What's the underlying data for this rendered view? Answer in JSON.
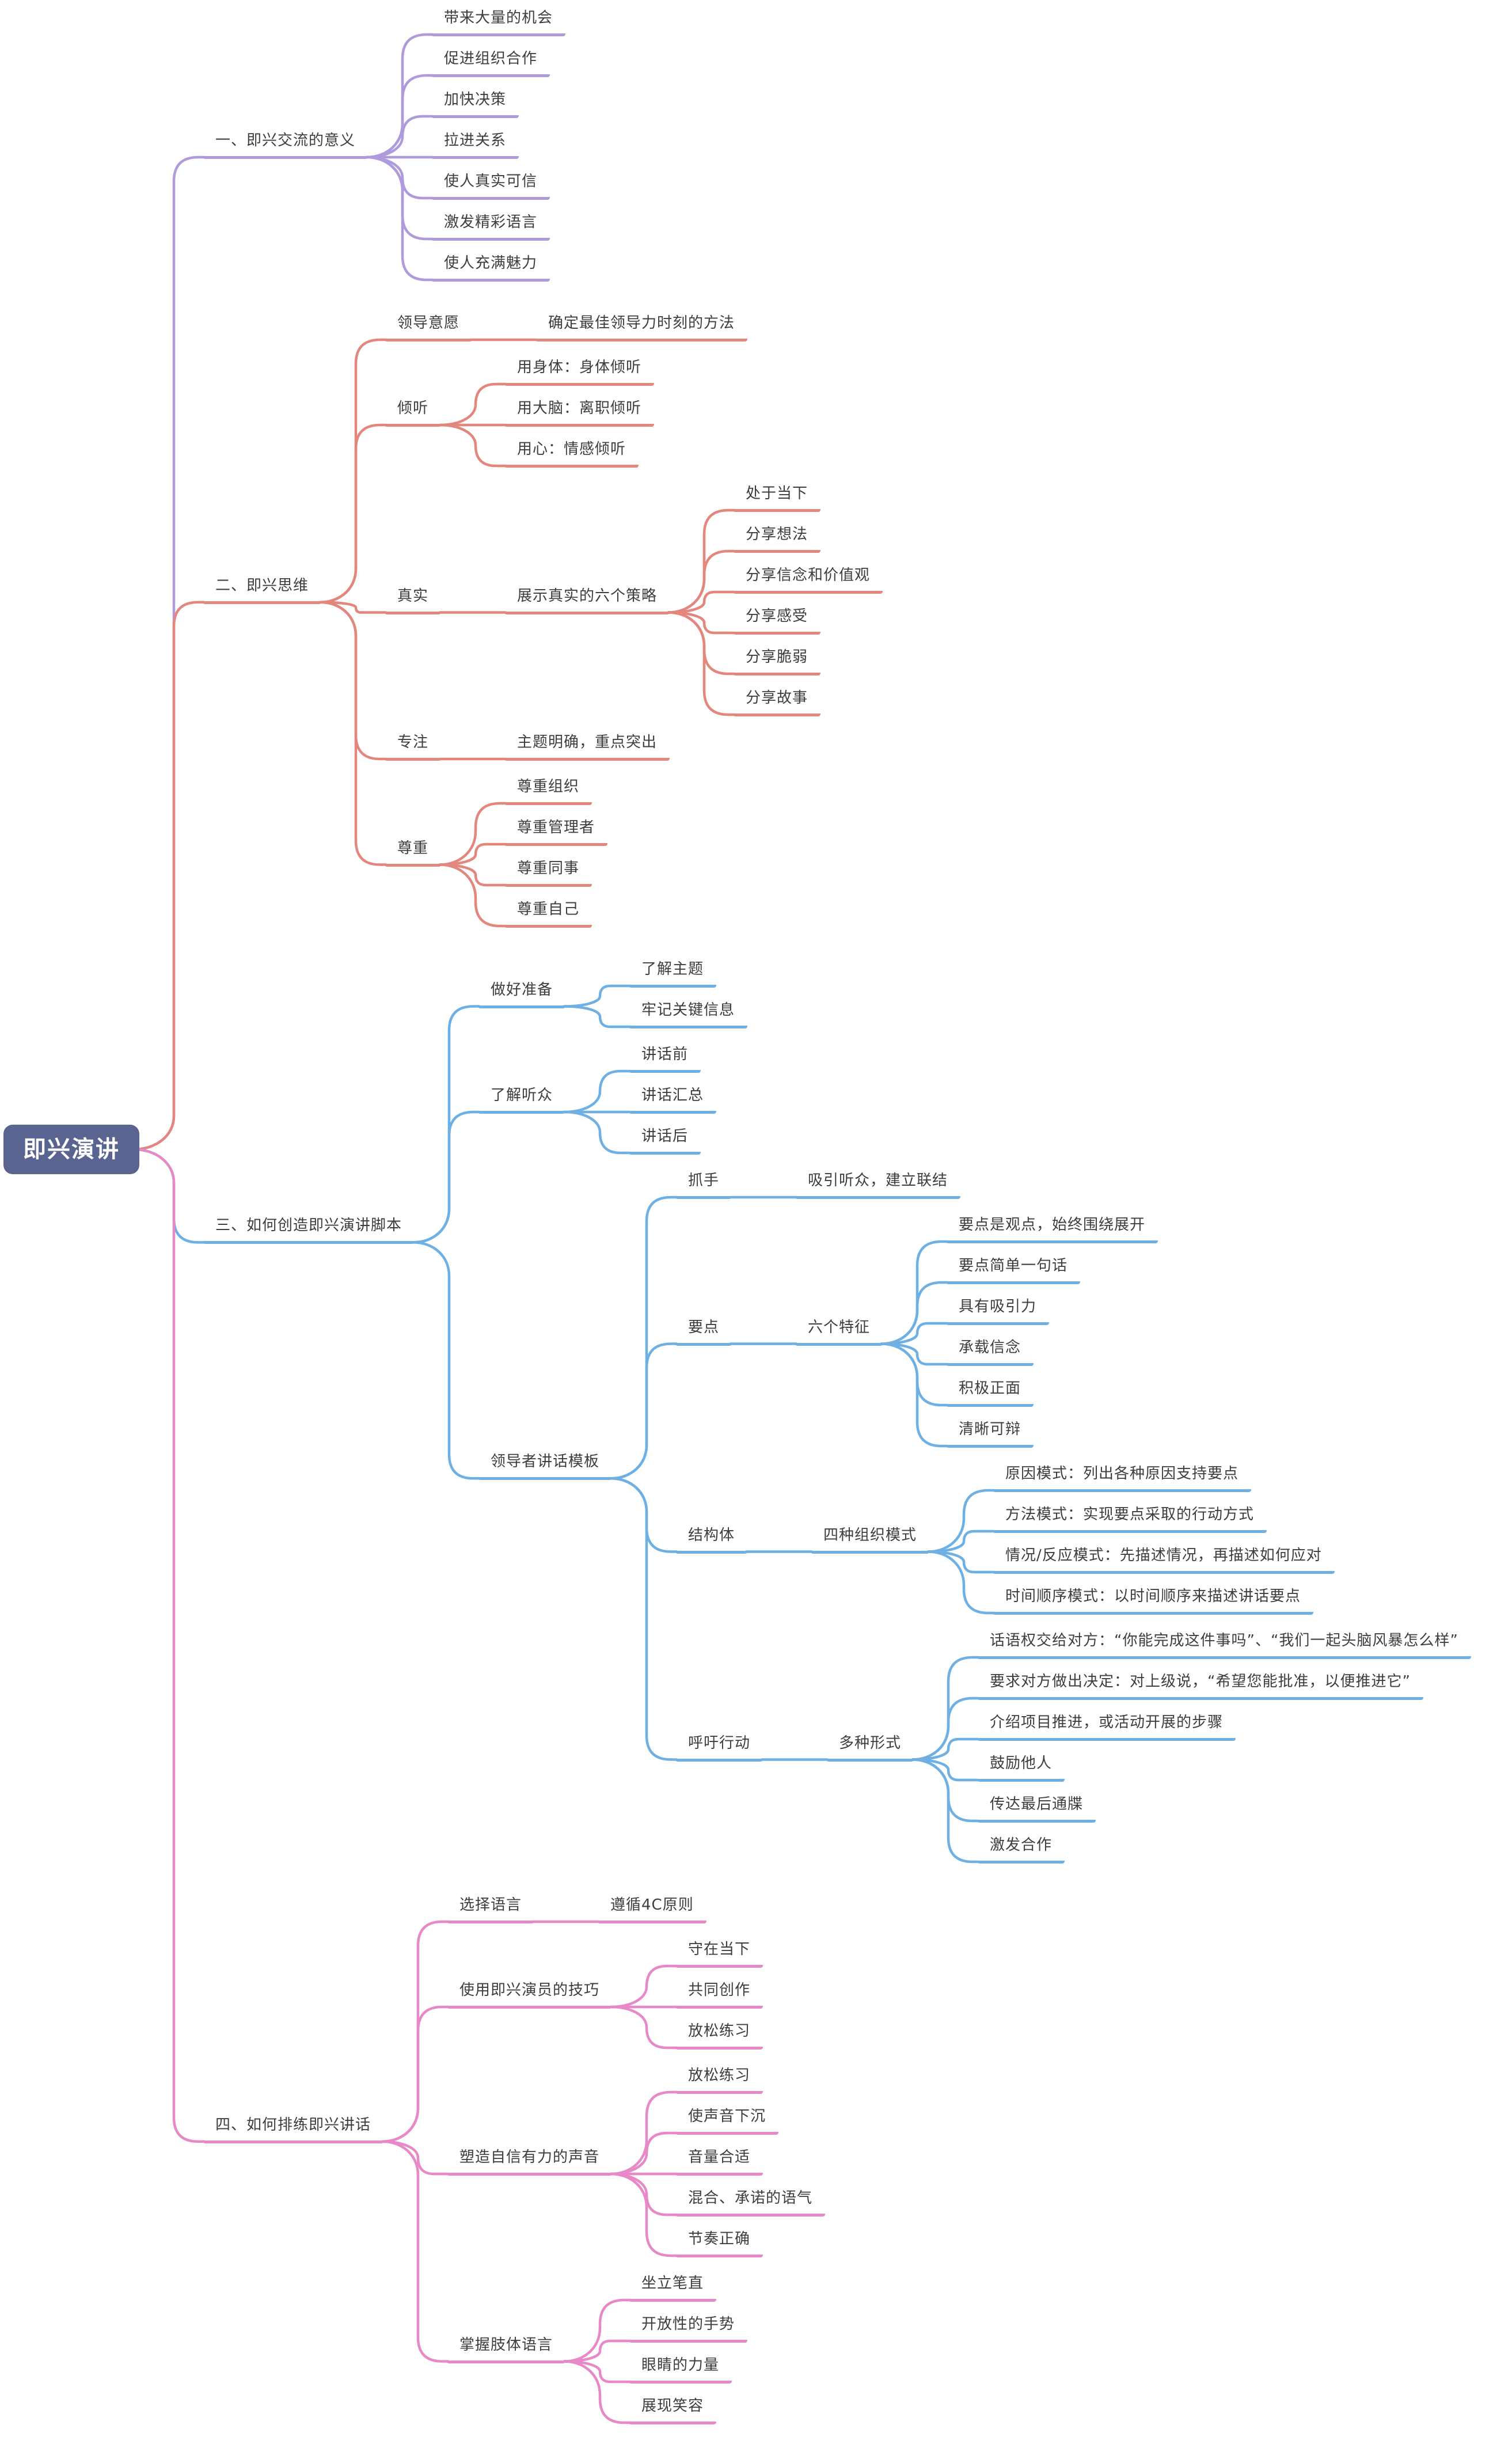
{
  "root": {
    "label": "即兴演讲",
    "color": "#5A6490"
  },
  "text_color": "#3D3D3D",
  "background_color": "#FFFFFF",
  "branches": [
    {
      "label": "一、即兴交流的意义",
      "color": "#AF9ADB",
      "children": [
        {
          "label": "带来大量的机会"
        },
        {
          "label": "促进组织合作"
        },
        {
          "label": "加快决策"
        },
        {
          "label": "拉进关系"
        },
        {
          "label": "使人真实可信"
        },
        {
          "label": "激发精彩语言"
        },
        {
          "label": "使人充满魅力"
        }
      ]
    },
    {
      "label": "二、即兴思维",
      "color": "#E2867E",
      "children": [
        {
          "label": "领导意愿",
          "children": [
            {
              "label": "确定最佳领导力时刻的方法"
            }
          ]
        },
        {
          "label": "倾听",
          "children": [
            {
              "label": "用身体：身体倾听"
            },
            {
              "label": "用大脑：离职倾听"
            },
            {
              "label": "用心：情感倾听"
            }
          ]
        },
        {
          "label": "真实",
          "children": [
            {
              "label": "展示真实的六个策略",
              "children": [
                {
                  "label": "处于当下"
                },
                {
                  "label": "分享想法"
                },
                {
                  "label": "分享信念和价值观"
                },
                {
                  "label": "分享感受"
                },
                {
                  "label": "分享脆弱"
                },
                {
                  "label": "分享故事"
                }
              ]
            }
          ]
        },
        {
          "label": "专注",
          "children": [
            {
              "label": "主题明确，重点突出"
            }
          ]
        },
        {
          "label": "尊重",
          "children": [
            {
              "label": "尊重组织"
            },
            {
              "label": "尊重管理者"
            },
            {
              "label": "尊重同事"
            },
            {
              "label": "尊重自己"
            }
          ]
        }
      ]
    },
    {
      "label": "三、如何创造即兴演讲脚本",
      "color": "#6FB0E4",
      "children": [
        {
          "label": "做好准备",
          "children": [
            {
              "label": "了解主题"
            },
            {
              "label": "牢记关键信息"
            }
          ]
        },
        {
          "label": "了解听众",
          "children": [
            {
              "label": "讲话前"
            },
            {
              "label": "讲话汇总"
            },
            {
              "label": "讲话后"
            }
          ]
        },
        {
          "label": "领导者讲话模板",
          "children": [
            {
              "label": "抓手",
              "children": [
                {
                  "label": "吸引听众，建立联结"
                }
              ]
            },
            {
              "label": "要点",
              "children": [
                {
                  "label": "六个特征",
                  "children": [
                    {
                      "label": "要点是观点，始终围绕展开"
                    },
                    {
                      "label": "要点简单一句话"
                    },
                    {
                      "label": "具有吸引力"
                    },
                    {
                      "label": "承载信念"
                    },
                    {
                      "label": "积极正面"
                    },
                    {
                      "label": "清晰可辩"
                    }
                  ]
                }
              ]
            },
            {
              "label": "结构体",
              "children": [
                {
                  "label": "四种组织模式",
                  "children": [
                    {
                      "label": "原因模式：列出各种原因支持要点"
                    },
                    {
                      "label": "方法模式：实现要点采取的行动方式"
                    },
                    {
                      "label": "情况/反应模式：先描述情况，再描述如何应对"
                    },
                    {
                      "label": "时间顺序模式：以时间顺序来描述讲话要点"
                    }
                  ]
                }
              ]
            },
            {
              "label": "呼吁行动",
              "children": [
                {
                  "label": "多种形式",
                  "children": [
                    {
                      "label": "话语权交给对方：“你能完成这件事吗”、“我们一起头脑风暴怎么样”"
                    },
                    {
                      "label": "要求对方做出决定：对上级说，“希望您能批准，以便推进它”"
                    },
                    {
                      "label": "介绍项目推进，或活动开展的步骤"
                    },
                    {
                      "label": "鼓励他人"
                    },
                    {
                      "label": "传达最后通牒"
                    },
                    {
                      "label": "激发合作"
                    }
                  ]
                }
              ]
            }
          ]
        }
      ]
    },
    {
      "label": "四、如何排练即兴讲话",
      "color": "#E689C6",
      "children": [
        {
          "label": "选择语言",
          "children": [
            {
              "label": "遵循4C原则"
            }
          ]
        },
        {
          "label": "使用即兴演员的技巧",
          "children": [
            {
              "label": "守在当下"
            },
            {
              "label": "共同创作"
            },
            {
              "label": "放松练习"
            }
          ]
        },
        {
          "label": "塑造自信有力的声音",
          "children": [
            {
              "label": "放松练习"
            },
            {
              "label": "使声音下沉"
            },
            {
              "label": "音量合适"
            },
            {
              "label": "混合、承诺的语气"
            },
            {
              "label": "节奏正确"
            }
          ]
        },
        {
          "label": "掌握肢体语言",
          "children": [
            {
              "label": "坐立笔直"
            },
            {
              "label": "开放性的手势"
            },
            {
              "label": "眼睛的力量"
            },
            {
              "label": "展现笑容"
            }
          ]
        }
      ]
    }
  ]
}
